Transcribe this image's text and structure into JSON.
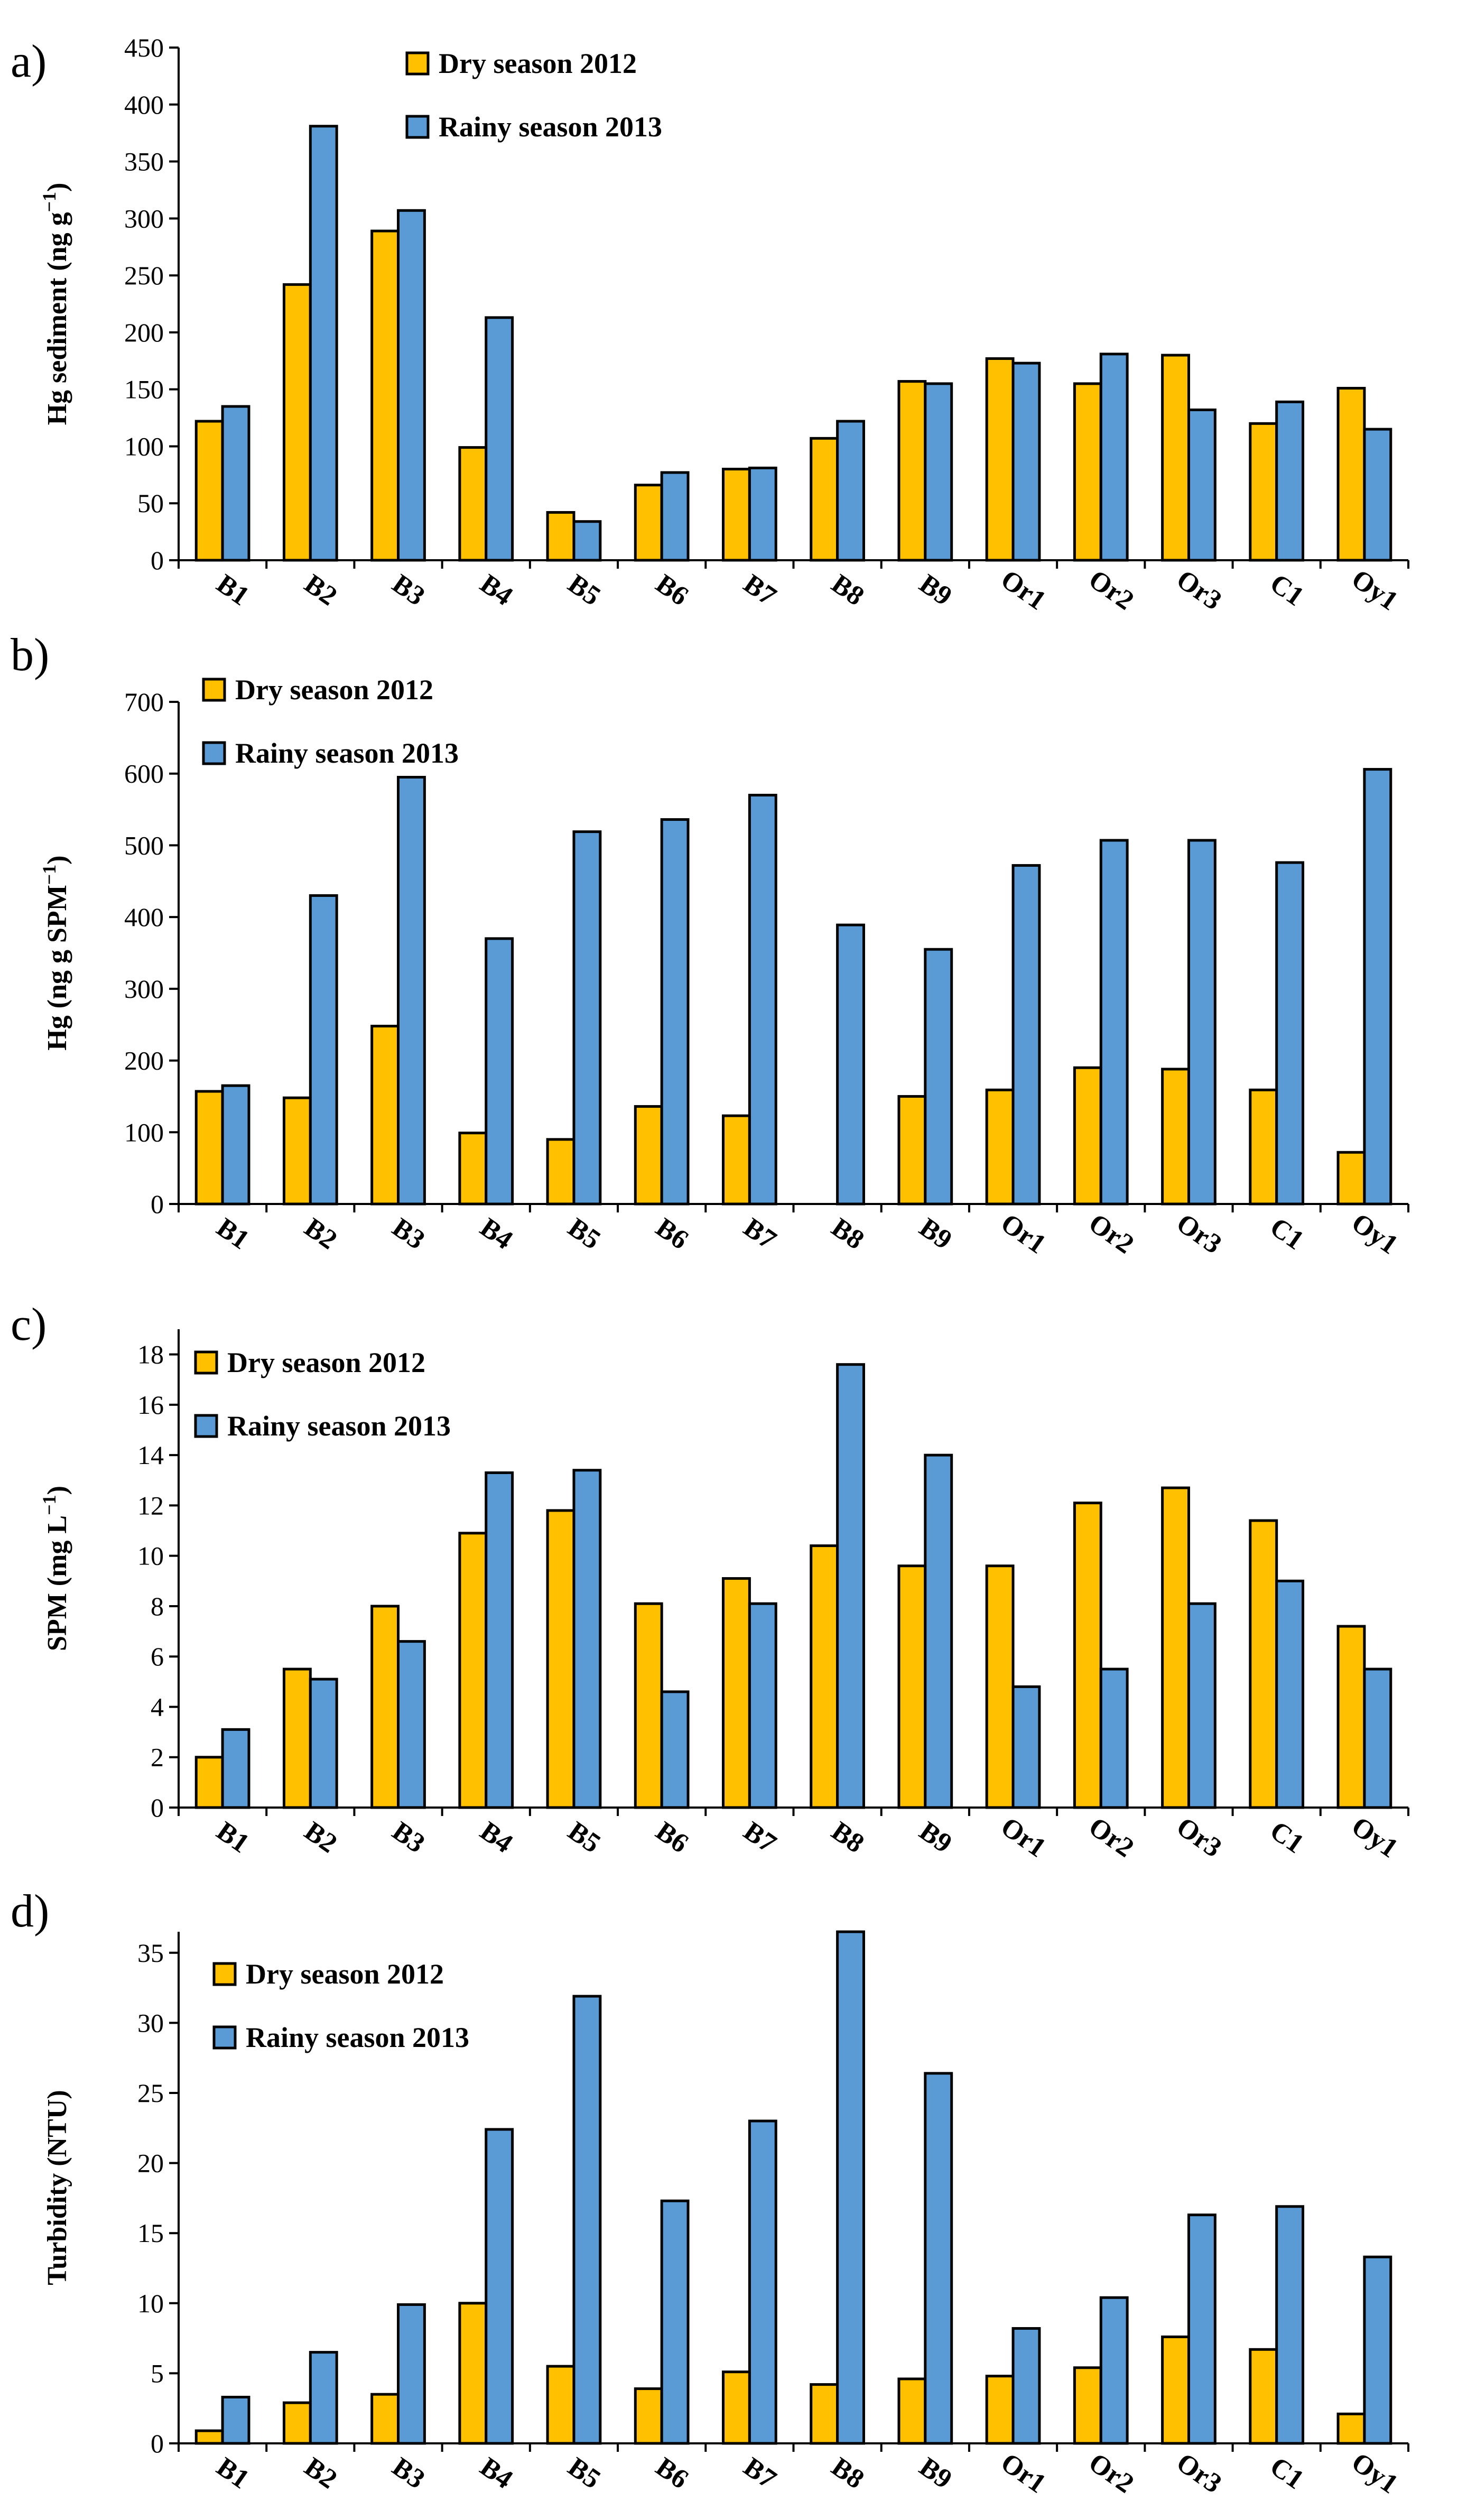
{
  "colors": {
    "dry": "#FFC000",
    "rainy": "#5B9BD5"
  },
  "chart_data": [
    {
      "type": "bar",
      "panel_label": "a)",
      "ylabel": "Hg sediment (ng g",
      "ylabel_sup": "−1",
      "ylabel_tail": ")",
      "ylim": [
        0,
        450
      ],
      "yticks": [
        0,
        50,
        100,
        150,
        200,
        250,
        300,
        350,
        400,
        450
      ],
      "categories": [
        "B1",
        "B2",
        "B3",
        "B4",
        "B5",
        "B6",
        "B7",
        "B8",
        "B9",
        "Or1",
        "Or2",
        "Or3",
        "C1",
        "Oy1"
      ],
      "legend_position": "top-center",
      "series": [
        {
          "name": "Dry season 2012",
          "values": [
            122,
            242,
            289,
            99,
            42,
            66,
            80,
            107,
            157,
            177,
            155,
            180,
            120,
            151
          ]
        },
        {
          "name": "Rainy season 2013",
          "values": [
            135,
            381,
            307,
            213,
            34,
            77,
            81,
            122,
            155,
            173,
            181,
            132,
            139,
            115
          ]
        }
      ]
    },
    {
      "type": "bar",
      "panel_label": "b)",
      "ylabel": "Hg (ng g SPM",
      "ylabel_sup": "−1",
      "ylabel_tail": ")",
      "ylim": [
        0,
        700
      ],
      "yticks": [
        0,
        100,
        200,
        300,
        400,
        500,
        600,
        700
      ],
      "categories": [
        "B1",
        "B2",
        "B3",
        "B4",
        "B5",
        "B6",
        "B7",
        "B8",
        "B9",
        "Or1",
        "Or2",
        "Or3",
        "C1",
        "Oy1"
      ],
      "legend_position": "top-left",
      "series": [
        {
          "name": "Dry season 2012",
          "values": [
            157,
            148,
            248,
            99,
            90,
            136,
            123,
            0,
            150,
            159,
            190,
            188,
            159,
            72
          ]
        },
        {
          "name": "Rainy season 2013",
          "values": [
            165,
            430,
            595,
            370,
            519,
            536,
            570,
            389,
            355,
            472,
            507,
            507,
            476,
            606
          ]
        }
      ]
    },
    {
      "type": "bar",
      "panel_label": "c)",
      "ylabel": "SPM (mg L",
      "ylabel_sup": "−1",
      "ylabel_tail": ")",
      "ylim": [
        0,
        19
      ],
      "yticks": [
        0,
        2,
        4,
        6,
        8,
        10,
        12,
        14,
        16,
        18
      ],
      "categories": [
        "B1",
        "B2",
        "B3",
        "B4",
        "B5",
        "B6",
        "B7",
        "B8",
        "B9",
        "Or1",
        "Or2",
        "Or3",
        "C1",
        "Oy1"
      ],
      "legend_position": "top-left",
      "series": [
        {
          "name": "Dry season 2012",
          "values": [
            2.0,
            5.5,
            8.0,
            10.9,
            11.8,
            8.1,
            9.1,
            10.4,
            9.6,
            9.6,
            12.1,
            12.7,
            11.4,
            7.2
          ]
        },
        {
          "name": "Rainy season 2013",
          "values": [
            3.1,
            5.1,
            6.6,
            13.3,
            13.4,
            4.6,
            8.1,
            17.6,
            14.0,
            4.8,
            5.5,
            8.1,
            9.0,
            5.5
          ]
        }
      ]
    },
    {
      "type": "bar",
      "panel_label": "d)",
      "ylabel": "Turbidity (NTU)",
      "ylabel_sup": "",
      "ylabel_tail": "",
      "ylim": [
        0,
        36.5
      ],
      "yticks": [
        0,
        5,
        10,
        15,
        20,
        25,
        30,
        35
      ],
      "categories": [
        "B1",
        "B2",
        "B3",
        "B4",
        "B5",
        "B6",
        "B7",
        "B8",
        "B9",
        "Or1",
        "Or2",
        "Or3",
        "C1",
        "Oy1"
      ],
      "legend_position": "top-left",
      "series": [
        {
          "name": "Dry season 2012",
          "values": [
            0.9,
            2.9,
            3.5,
            10.0,
            5.5,
            3.9,
            5.1,
            4.2,
            4.6,
            4.8,
            5.4,
            7.6,
            6.7,
            2.1
          ]
        },
        {
          "name": "Rainy season 2013",
          "values": [
            3.3,
            6.5,
            9.9,
            22.4,
            31.9,
            17.3,
            23.0,
            36.5,
            26.4,
            8.2,
            10.4,
            16.3,
            16.9,
            13.3
          ]
        }
      ]
    }
  ]
}
